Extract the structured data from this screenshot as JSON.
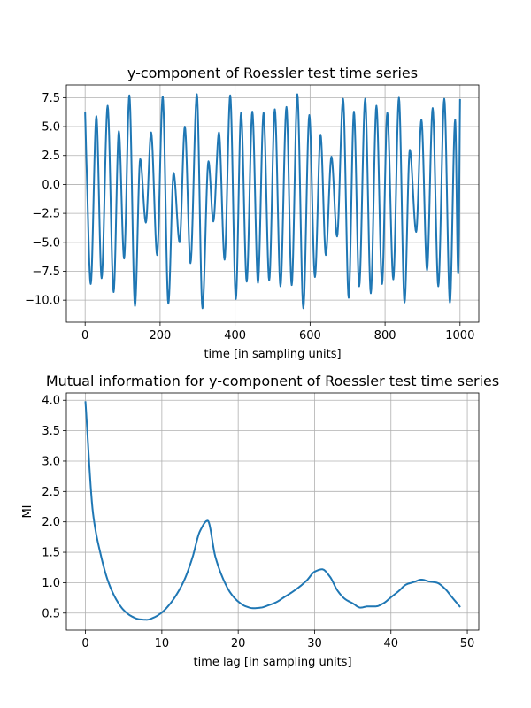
{
  "chart_data": [
    {
      "type": "line",
      "title": "y-component of Roessler test time series",
      "xlabel": "time [in sampling units]",
      "ylabel": "",
      "xlim": [
        -50,
        1050
      ],
      "ylim": [
        -11.9,
        8.6
      ],
      "xticks": [
        0,
        200,
        400,
        600,
        800,
        1000
      ],
      "xtick_labels": [
        "0",
        "200",
        "400",
        "600",
        "800",
        "1000"
      ],
      "yticks": [
        7.5,
        5.0,
        2.5,
        0.0,
        -2.5,
        -5.0,
        -7.5,
        -10.0
      ],
      "ytick_labels": [
        "7.5",
        "5.0",
        "2.5",
        "0.0",
        "−2.5",
        "−5.0",
        "−7.5",
        "−10.0"
      ],
      "grid": true,
      "color": "#1f77b4",
      "series": [
        {
          "x": [
            0,
            4,
            15,
            30,
            44,
            60,
            76,
            90,
            104,
            118,
            133,
            147,
            162,
            176,
            192,
            207,
            222,
            236,
            252,
            266,
            281,
            298,
            313,
            329,
            342,
            357,
            372,
            387,
            402,
            416,
            431,
            446,
            461,
            476,
            491,
            506,
            521,
            537,
            551,
            566,
            582,
            598,
            613,
            628,
            642,
            657,
            672,
            688,
            703,
            717,
            731,
            747,
            762,
            777,
            792,
            806,
            822,
            837,
            852,
            866,
            883,
            897,
            912,
            927,
            942,
            958,
            973,
            987,
            995,
            1000
          ],
          "y": [
            6.2,
            1.5,
            -8.6,
            5.9,
            -8.1,
            6.8,
            -9.3,
            4.6,
            -6.4,
            7.7,
            -10.5,
            2.2,
            -3.3,
            4.5,
            -6.1,
            7.6,
            -10.3,
            1.0,
            -5.0,
            5.0,
            -6.8,
            7.8,
            -10.7,
            2.0,
            -3.2,
            4.5,
            -6.5,
            7.7,
            -9.9,
            6.2,
            -8.4,
            6.3,
            -8.5,
            6.2,
            -8.3,
            6.5,
            -8.8,
            6.7,
            -8.7,
            7.8,
            -10.7,
            6.0,
            -8.0,
            4.3,
            -6.1,
            2.4,
            -4.5,
            7.4,
            -9.8,
            6.3,
            -8.8,
            7.4,
            -9.4,
            6.8,
            -8.6,
            6.2,
            -8.2,
            7.5,
            -10.2,
            3.0,
            -4.1,
            5.6,
            -7.4,
            6.6,
            -8.8,
            7.4,
            -10.2,
            5.6,
            -7.7,
            7.3
          ]
        }
      ]
    },
    {
      "type": "line",
      "title": "Mutual information for y-component of Roessler test time series",
      "xlabel": "time lag [in sampling units]",
      "ylabel": "MI",
      "xlim": [
        -2.5,
        51.5
      ],
      "ylim": [
        0.22,
        4.12
      ],
      "xticks": [
        0,
        10,
        20,
        30,
        40,
        50
      ],
      "xtick_labels": [
        "0",
        "10",
        "20",
        "30",
        "40",
        "50"
      ],
      "yticks": [
        0.5,
        1.0,
        1.5,
        2.0,
        2.5,
        3.0,
        3.5,
        4.0
      ],
      "ytick_labels": [
        "0.5",
        "1.0",
        "1.5",
        "2.0",
        "2.5",
        "3.0",
        "3.5",
        "4.0"
      ],
      "grid": true,
      "color": "#1f77b4",
      "series": [
        {
          "x": [
            0,
            1,
            2,
            3,
            4,
            5,
            6,
            7,
            8,
            9,
            10,
            11,
            12,
            13,
            14,
            15,
            16,
            17,
            18,
            19,
            20,
            21,
            22,
            23,
            24,
            25,
            26,
            27,
            28,
            29,
            30,
            31,
            32,
            33,
            34,
            35,
            36,
            37,
            38,
            39,
            40,
            41,
            42,
            43,
            44,
            45,
            46,
            47,
            48,
            49
          ],
          "y": [
            3.97,
            2.13,
            1.46,
            1.01,
            0.73,
            0.55,
            0.45,
            0.4,
            0.39,
            0.43,
            0.51,
            0.64,
            0.82,
            1.06,
            1.41,
            1.85,
            2.02,
            1.43,
            1.07,
            0.83,
            0.69,
            0.61,
            0.58,
            0.59,
            0.63,
            0.68,
            0.76,
            0.84,
            0.93,
            1.04,
            1.18,
            1.22,
            1.1,
            0.87,
            0.73,
            0.66,
            0.59,
            0.61,
            0.61,
            0.66,
            0.76,
            0.86,
            0.97,
            1.01,
            1.05,
            1.02,
            1.0,
            0.91,
            0.76,
            0.61
          ]
        }
      ]
    }
  ]
}
